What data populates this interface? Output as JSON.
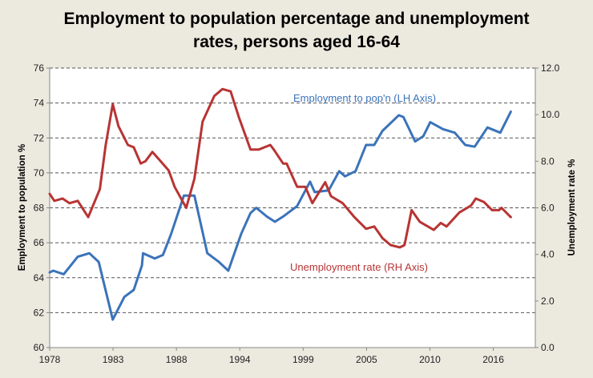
{
  "chart_data": {
    "type": "line",
    "title": [
      "Employment to population percentage and unemployment",
      "rates, persons aged 16-64"
    ],
    "ylabel_left": "Employment to population %",
    "ylabel_right": "Unemployment rate %",
    "ylim_left": [
      60,
      76
    ],
    "ylim_right": [
      0,
      12
    ],
    "yticks_left": [
      "60",
      "62",
      "64",
      "66",
      "68",
      "70",
      "72",
      "74",
      "76"
    ],
    "yticks_right": [
      "0.0",
      "2.0",
      "4.0",
      "6.0",
      "8.0",
      "10.0",
      "12.0"
    ],
    "xlim": [
      1978,
      2019.6
    ],
    "xtick_labels": [
      "1978",
      "1983",
      "1988",
      "1994",
      "1999",
      "2005",
      "2010",
      "2016"
    ],
    "grid": true,
    "series": [
      {
        "name": "Employment to pop'n (LH Axis)",
        "axis": "left",
        "color": "#3b73b9",
        "x": [
          1978,
          1978.3,
          1979.2,
          1980.4,
          1981.4,
          1982.2,
          1983.4,
          1984.4,
          1985.2,
          1985.9,
          1986.0,
          1987.0,
          1987.7,
          1988.4,
          1989.5,
          1990.4,
          1991.5,
          1992.5,
          1993.3,
          1994.4,
          1995.2,
          1995.7,
          1996.6,
          1997.3,
          1998.0,
          1999.2,
          2000.3,
          2000.7,
          2001.9,
          2002.8,
          2003.3,
          2004.2,
          2005.1,
          2005.8,
          2006.5,
          2007.9,
          2008.3,
          2009.3,
          2010.0,
          2010.6,
          2011.7,
          2012.7,
          2013.6,
          2014.4,
          2015.5,
          2016.6,
          2017.5
        ],
        "y": [
          64.3,
          64.4,
          64.2,
          65.2,
          65.4,
          64.9,
          61.6,
          62.9,
          63.3,
          64.7,
          65.4,
          65.1,
          65.3,
          66.5,
          68.7,
          68.7,
          65.4,
          64.9,
          64.4,
          66.5,
          67.7,
          68.0,
          67.5,
          67.2,
          67.5,
          68.1,
          69.5,
          68.9,
          69.0,
          70.1,
          69.8,
          70.1,
          71.6,
          71.6,
          72.4,
          73.3,
          73.2,
          71.8,
          72.1,
          72.9,
          72.5,
          72.3,
          71.6,
          71.5,
          72.6,
          72.3,
          73.5
        ]
      },
      {
        "name": "Unemployment rate (RH Axis)",
        "axis": "right",
        "color": "#b83434",
        "x": [
          1978,
          1978.4,
          1979.1,
          1979.7,
          1980.4,
          1981.3,
          1982.3,
          1982.8,
          1983.4,
          1983.9,
          1984.7,
          1985.2,
          1985.8,
          1986.2,
          1986.8,
          1987.5,
          1988.2,
          1988.7,
          1989.7,
          1990.4,
          1991.1,
          1992.1,
          1992.8,
          1993.5,
          1994.2,
          1995.2,
          1995.9,
          1996.9,
          1997.2,
          1998.0,
          1998.3,
          1999.2,
          1999.9,
          2000.5,
          2001.6,
          2002.1,
          2003.1,
          2004.1,
          2005.1,
          2005.8,
          2006.5,
          2007.2,
          2008.0,
          2008.4,
          2009.0,
          2009.7,
          2010.9,
          2011.5,
          2012.0,
          2013.1,
          2014.1,
          2014.5,
          2015.2,
          2015.9,
          2016.5,
          2016.7,
          2017.5
        ],
        "y": [
          6.6,
          6.3,
          6.4,
          6.2,
          6.3,
          5.6,
          6.8,
          8.7,
          10.45,
          9.5,
          8.7,
          8.6,
          7.9,
          8.0,
          8.4,
          8.0,
          7.6,
          6.9,
          6.0,
          7.25,
          9.7,
          10.8,
          11.1,
          11.0,
          9.9,
          8.5,
          8.5,
          8.7,
          8.5,
          7.9,
          7.9,
          6.9,
          6.9,
          6.2,
          7.1,
          6.5,
          6.2,
          5.6,
          5.1,
          5.2,
          4.7,
          4.4,
          4.3,
          4.4,
          5.9,
          5.4,
          5.05,
          5.35,
          5.2,
          5.8,
          6.1,
          6.4,
          6.25,
          5.9,
          5.9,
          6.0,
          5.6
        ]
      }
    ],
    "annotations": [
      "Employment to pop'n (LH Axis)",
      "Unemployment rate (RH Axis)"
    ]
  }
}
